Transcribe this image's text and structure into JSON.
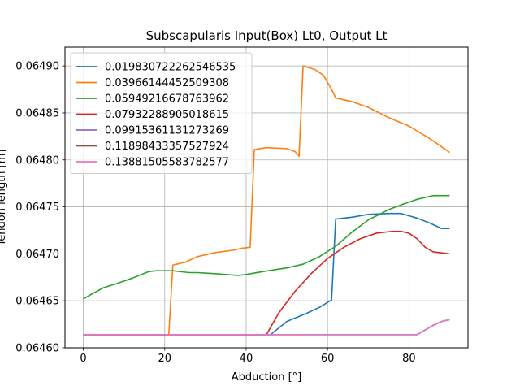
{
  "chart_data": {
    "type": "line",
    "title": "Subscapularis Input(Box) Lt0, Output Lt",
    "xlabel": "Abduction [°]",
    "ylabel": "Tendon length [m]",
    "xlim": [
      -4.5,
      94.5
    ],
    "ylim": [
      0.0646,
      0.06492
    ],
    "x_ticks": [
      0,
      20,
      40,
      60,
      80
    ],
    "y_ticks": [
      0.0646,
      0.06465,
      0.0647,
      0.06475,
      0.0648,
      0.06485,
      0.0649
    ],
    "y_tick_labels": [
      "0.06460",
      "0.06465",
      "0.06470",
      "0.06475",
      "0.06480",
      "0.06485",
      "0.06490"
    ],
    "grid": true,
    "legend_position": "top-left",
    "series": [
      {
        "name": "0.019830722262546535",
        "color": "#1f77b4",
        "points": [
          [
            0,
            0.064614
          ],
          [
            46,
            0.064614
          ],
          [
            50,
            0.064628
          ],
          [
            55,
            0.064637
          ],
          [
            58,
            0.064643
          ],
          [
            61,
            0.064651
          ],
          [
            62,
            0.064737
          ],
          [
            66,
            0.064739
          ],
          [
            70,
            0.064742
          ],
          [
            75,
            0.064743
          ],
          [
            78,
            0.064743
          ],
          [
            82,
            0.064738
          ],
          [
            85,
            0.064733
          ],
          [
            88,
            0.064727
          ],
          [
            90,
            0.064727
          ]
        ]
      },
      {
        "name": "0.03966144452509308",
        "color": "#ff7f0e",
        "points": [
          [
            0,
            0.064614
          ],
          [
            21,
            0.064614
          ],
          [
            22,
            0.064688
          ],
          [
            25,
            0.064691
          ],
          [
            28,
            0.064697
          ],
          [
            32,
            0.064701
          ],
          [
            37,
            0.064704
          ],
          [
            39,
            0.064706
          ],
          [
            41,
            0.064707
          ],
          [
            42,
            0.064811
          ],
          [
            45,
            0.064813
          ],
          [
            50,
            0.064812
          ],
          [
            52,
            0.064809
          ],
          [
            53,
            0.064804
          ],
          [
            54,
            0.0649
          ],
          [
            57,
            0.064896
          ],
          [
            59,
            0.06489
          ],
          [
            61,
            0.064875
          ],
          [
            62,
            0.064866
          ],
          [
            66,
            0.064862
          ],
          [
            70,
            0.064856
          ],
          [
            75,
            0.064845
          ],
          [
            80,
            0.064836
          ],
          [
            85,
            0.064823
          ],
          [
            90,
            0.064808
          ]
        ]
      },
      {
        "name": "0.05949216678763962",
        "color": "#2ca02c",
        "points": [
          [
            0,
            0.064652
          ],
          [
            2,
            0.064657
          ],
          [
            5,
            0.064664
          ],
          [
            8,
            0.064668
          ],
          [
            12,
            0.064674
          ],
          [
            16,
            0.064681
          ],
          [
            18,
            0.064682
          ],
          [
            22,
            0.064682
          ],
          [
            26,
            0.06468
          ],
          [
            28,
            0.06468
          ],
          [
            32,
            0.064679
          ],
          [
            35,
            0.064678
          ],
          [
            38,
            0.064677
          ],
          [
            40,
            0.064678
          ],
          [
            44,
            0.064681
          ],
          [
            50,
            0.064685
          ],
          [
            54,
            0.064689
          ],
          [
            58,
            0.064697
          ],
          [
            62,
            0.064708
          ],
          [
            66,
            0.064723
          ],
          [
            70,
            0.064736
          ],
          [
            75,
            0.064747
          ],
          [
            78,
            0.064752
          ],
          [
            82,
            0.064758
          ],
          [
            86,
            0.064762
          ],
          [
            90,
            0.064762
          ]
        ]
      },
      {
        "name": "0.07932288905018615",
        "color": "#d62728",
        "points": [
          [
            0,
            0.064614
          ],
          [
            45,
            0.064614
          ],
          [
            48,
            0.064637
          ],
          [
            52,
            0.06466
          ],
          [
            56,
            0.064679
          ],
          [
            60,
            0.064695
          ],
          [
            64,
            0.064707
          ],
          [
            68,
            0.064716
          ],
          [
            72,
            0.064722
          ],
          [
            76,
            0.064724
          ],
          [
            78,
            0.064724
          ],
          [
            80,
            0.064722
          ],
          [
            82,
            0.064716
          ],
          [
            84,
            0.064707
          ],
          [
            86,
            0.064702
          ],
          [
            88,
            0.064701
          ],
          [
            90,
            0.0647
          ]
        ]
      },
      {
        "name": "0.09915361131273269",
        "color": "#9467bd",
        "points": [
          [
            0,
            0.064614
          ],
          [
            82,
            0.064614
          ],
          [
            84,
            0.064619
          ],
          [
            86,
            0.064624
          ],
          [
            88,
            0.064628
          ],
          [
            90,
            0.06463
          ]
        ]
      },
      {
        "name": "0.11898433357527924",
        "color": "#8c564b",
        "points": [
          [
            0,
            0.064614
          ],
          [
            82,
            0.064614
          ],
          [
            84,
            0.064619
          ],
          [
            86,
            0.064624
          ],
          [
            88,
            0.064628
          ],
          [
            90,
            0.06463
          ]
        ]
      },
      {
        "name": "0.13881505583782577",
        "color": "#e377c2",
        "points": [
          [
            0,
            0.064614
          ],
          [
            82,
            0.064614
          ],
          [
            84,
            0.064619
          ],
          [
            86,
            0.064624
          ],
          [
            88,
            0.064628
          ],
          [
            90,
            0.06463
          ]
        ]
      }
    ]
  }
}
